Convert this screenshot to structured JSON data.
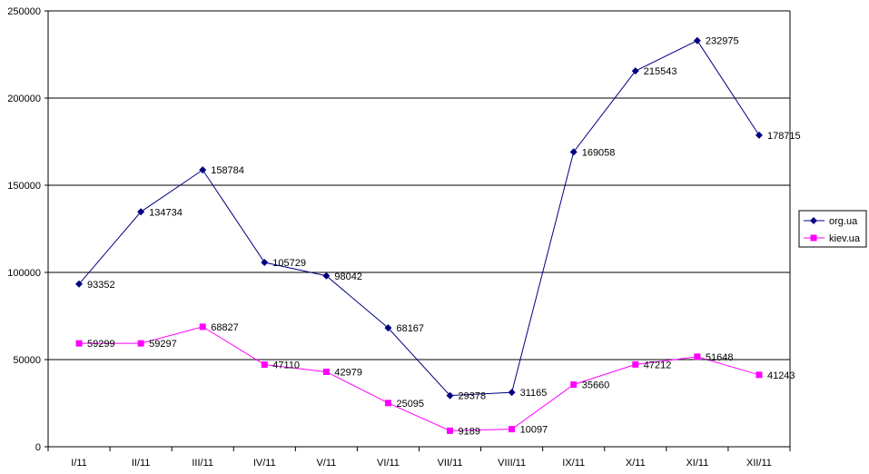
{
  "chart_data": {
    "type": "line",
    "title": "",
    "xlabel": "",
    "ylabel": "",
    "ylim": [
      0,
      250000
    ],
    "yticks": [
      "0",
      "50000",
      "100000",
      "150000",
      "200000",
      "250000"
    ],
    "grid": true,
    "legend_position": "right",
    "categories": [
      "I/11",
      "II/11",
      "III/11",
      "IV/11",
      "V/11",
      "VI/11",
      "VII/11",
      "VIII/11",
      "IX/11",
      "X/11",
      "XI/11",
      "XII/11"
    ],
    "series": [
      {
        "name": "org.ua",
        "color": "#000080",
        "marker": "diamond",
        "values": [
          93352,
          134734,
          158784,
          105729,
          98042,
          68167,
          29378,
          31165,
          169058,
          215543,
          232975,
          178715
        ]
      },
      {
        "name": "kiev.ua",
        "color": "#FF00FF",
        "marker": "square",
        "values": [
          59299,
          59297,
          68827,
          47110,
          42979,
          25095,
          9189,
          10097,
          35660,
          47212,
          51648,
          41243
        ]
      }
    ]
  }
}
